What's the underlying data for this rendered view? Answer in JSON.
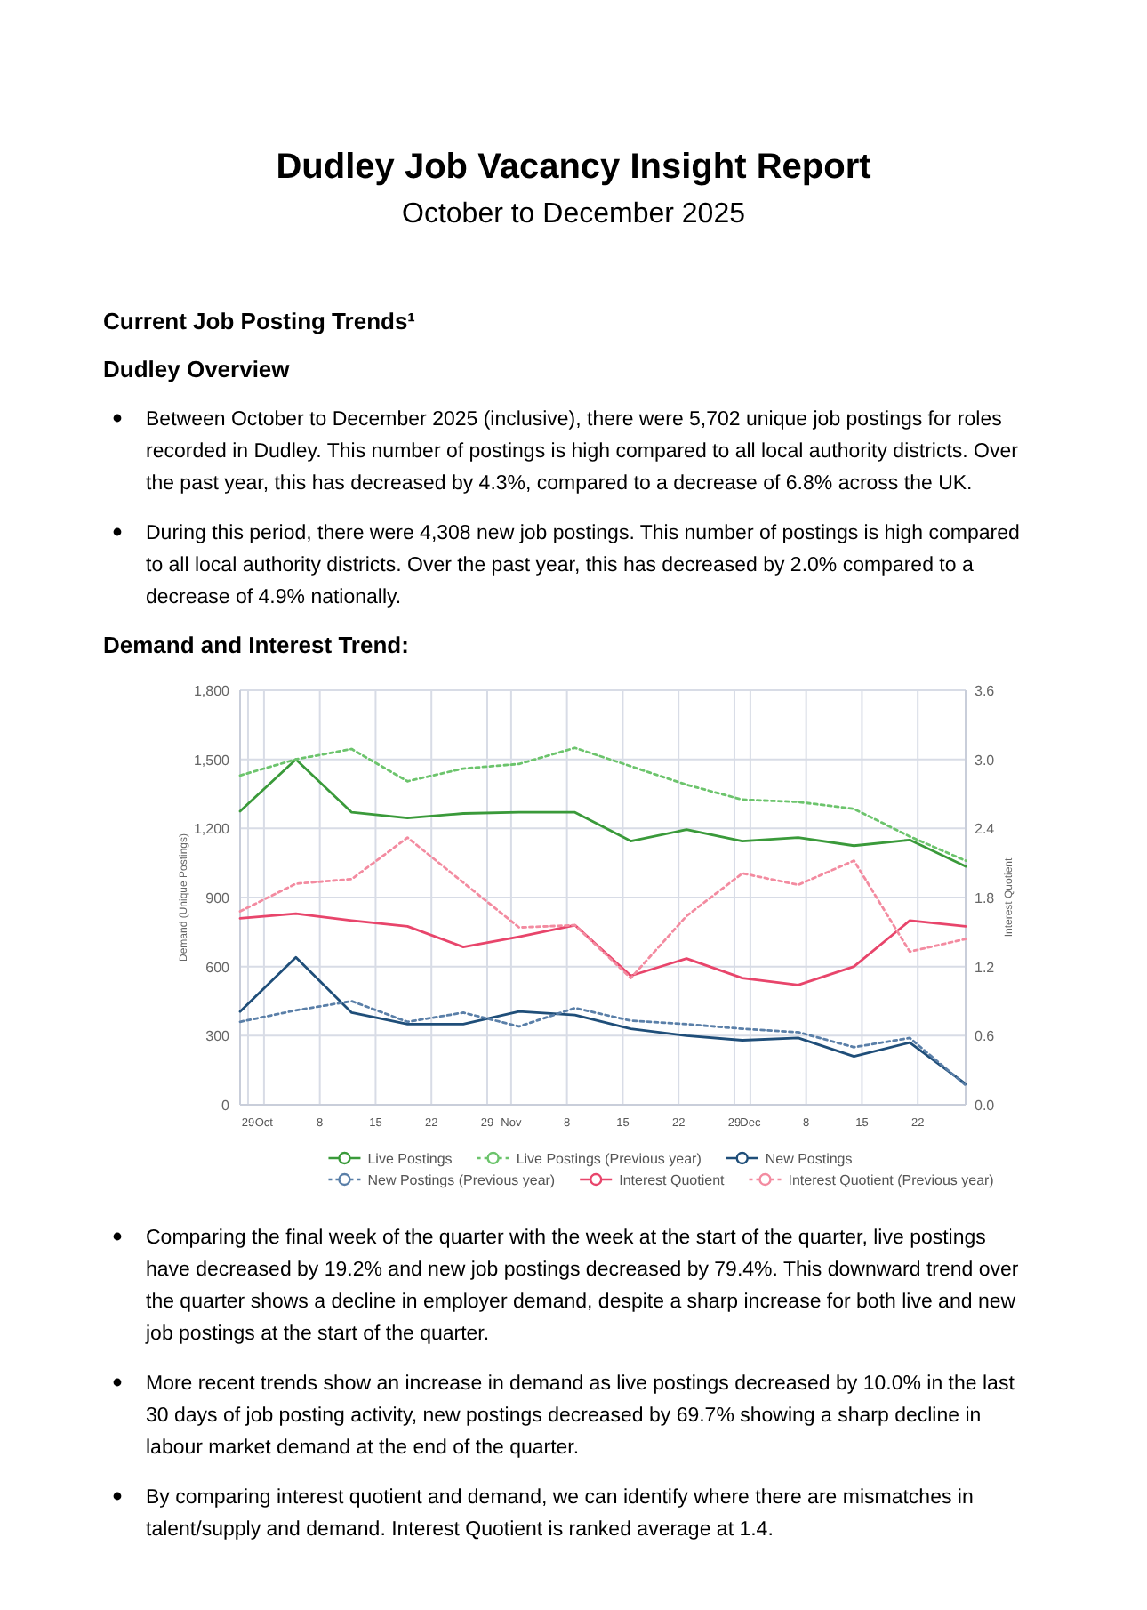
{
  "chart_data": {
    "type": "line",
    "title": "Dudley Job Vacancy Insight Report",
    "subtitle": "October to December 2025",
    "annotations": [
      "Current Job Posting Trends¹",
      "Dudley Overview",
      "Between October to December 2025 (inclusive), there were 5,702 unique job postings for roles recorded in Dudley. This number of postings is high compared to all local authority districts. Over the past year, this has decreased by 4.3%, compared to a decrease of 6.8% across the UK.",
      "During this period, there were 4,308 new job postings. This number of postings is high compared to all local authority districts. Over the past year, this has decreased by 2.0% compared to a decrease of 4.9% nationally.",
      "Demand and Interest Trend:",
      "Comparing the final week of the quarter with the week at the start of the quarter, live postings have decreased by 19.2% and new job postings decreased by 79.4%. This downward trend over the quarter shows a decline in employer demand, despite a sharp increase for both live and new job postings at the start of the quarter.",
      "More recent trends show an increase in demand as live postings decreased by 10.0% in the last 30 days of job posting activity, new postings decreased by 69.7% showing a sharp decline in labour market demand at the end of the quarter.",
      "By comparing interest quotient and demand, we can identify where there are mismatches in talent/supply and demand. Interest Quotient is ranked average at 1.4."
    ],
    "ylabel": "Demand (Unique Postings)",
    "y2label": "Interest Quotient",
    "x": [
      "2025-09-28",
      "2025-10-05",
      "2025-10-12",
      "2025-10-19",
      "2025-10-26",
      "2025-11-02",
      "2025-11-09",
      "2025-11-16",
      "2025-11-23",
      "2025-11-30",
      "2025-12-07",
      "2025-12-14",
      "2025-12-21",
      "2025-12-28"
    ],
    "xlim": [
      "2025-09-28",
      "2025-12-28"
    ],
    "xticks": [
      {
        "value": "2025-09-29",
        "label": "29"
      },
      {
        "value": "2025-10-01",
        "label": "Oct"
      },
      {
        "value": "2025-10-08",
        "label": "8"
      },
      {
        "value": "2025-10-15",
        "label": "15"
      },
      {
        "value": "2025-10-22",
        "label": "22"
      },
      {
        "value": "2025-10-29",
        "label": "29"
      },
      {
        "value": "2025-11-01",
        "label": "Nov"
      },
      {
        "value": "2025-11-08",
        "label": "8"
      },
      {
        "value": "2025-11-15",
        "label": "15"
      },
      {
        "value": "2025-11-22",
        "label": "22"
      },
      {
        "value": "2025-11-29",
        "label": "29"
      },
      {
        "value": "2025-12-01",
        "label": "Dec"
      },
      {
        "value": "2025-12-08",
        "label": "8"
      },
      {
        "value": "2025-12-15",
        "label": "15"
      },
      {
        "value": "2025-12-22",
        "label": "22"
      }
    ],
    "ylim": [
      0,
      1800
    ],
    "yticks": [
      {
        "value": 0,
        "label": "0"
      },
      {
        "value": 300,
        "label": "300"
      },
      {
        "value": 600,
        "label": "600"
      },
      {
        "value": 900,
        "label": "900"
      },
      {
        "value": 1200,
        "label": "1,200"
      },
      {
        "value": 1500,
        "label": "1,500"
      },
      {
        "value": 1800,
        "label": "1,800"
      }
    ],
    "y2lim": [
      0,
      3.6
    ],
    "y2ticks": [
      {
        "value": 0,
        "label": "0.0"
      },
      {
        "value": 0.6,
        "label": "0.6"
      },
      {
        "value": 1.2,
        "label": "1.2"
      },
      {
        "value": 1.8,
        "label": "1.8"
      },
      {
        "value": 2.4,
        "label": "2.4"
      },
      {
        "value": 3,
        "label": "3.0"
      },
      {
        "value": 3.6,
        "label": "3.6"
      }
    ],
    "grid": true,
    "legend": "bottom",
    "series": [
      {
        "name": "Live Postings",
        "color": "#3a9a3a",
        "line_style": "solid",
        "values": [
          1275,
          1500,
          1270,
          1245,
          1265,
          1270,
          1270,
          1145,
          1195,
          1145,
          1160,
          1125,
          1150,
          1035
        ]
      },
      {
        "name": "Live Postings (Previous year)",
        "color": "#6cc46c",
        "line_style": "dotted",
        "values": [
          1430,
          1500,
          1545,
          1405,
          1460,
          1480,
          1550,
          1470,
          1390,
          1325,
          1315,
          1285,
          1165,
          1060
        ]
      },
      {
        "name": "New Postings",
        "color": "#1f4e79",
        "line_style": "solid",
        "values": [
          405,
          640,
          400,
          350,
          350,
          405,
          390,
          330,
          300,
          280,
          290,
          210,
          270,
          90
        ]
      },
      {
        "name": "New Postings (Previous year)",
        "color": "#5a7fa8",
        "line_style": "dotted",
        "values": [
          360,
          410,
          450,
          360,
          400,
          340,
          420,
          365,
          350,
          330,
          315,
          250,
          290,
          85
        ]
      },
      {
        "name": "Interest Quotient",
        "color": "#e8456b",
        "line_style": "solid",
        "axis": "y2",
        "values": [
          1.62,
          1.66,
          1.6,
          1.55,
          1.37,
          1.46,
          1.56,
          1.12,
          1.27,
          1.1,
          1.04,
          1.2,
          1.6,
          1.55
        ]
      },
      {
        "name": "Interest Quotient (Previous year)",
        "color": "#f38ba0",
        "line_style": "dotted",
        "axis": "y2",
        "values": [
          1.68,
          1.92,
          1.96,
          2.32,
          1.93,
          1.54,
          1.56,
          1.1,
          1.64,
          2.01,
          1.91,
          2.12,
          1.33,
          1.44
        ]
      }
    ]
  }
}
